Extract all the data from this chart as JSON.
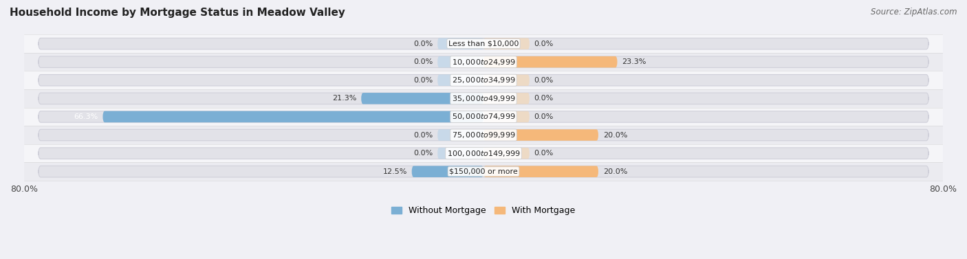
{
  "title": "Household Income by Mortgage Status in Meadow Valley",
  "source": "Source: ZipAtlas.com",
  "categories": [
    "Less than $10,000",
    "$10,000 to $24,999",
    "$25,000 to $34,999",
    "$35,000 to $49,999",
    "$50,000 to $74,999",
    "$75,000 to $99,999",
    "$100,000 to $149,999",
    "$150,000 or more"
  ],
  "without_mortgage": [
    0.0,
    0.0,
    0.0,
    21.3,
    66.3,
    0.0,
    0.0,
    12.5
  ],
  "with_mortgage": [
    0.0,
    23.3,
    0.0,
    0.0,
    0.0,
    20.0,
    0.0,
    20.0
  ],
  "color_without": "#7bafd4",
  "color_with": "#f5b87a",
  "color_without_light": "#b8d4ea",
  "color_with_light": "#f5d5af",
  "xlim_left": -80,
  "xlim_right": 80,
  "xtick_left_label": "80.0%",
  "xtick_right_label": "80.0%",
  "bg_row_odd": "#ebebf0",
  "bg_row_even": "#f5f5f8",
  "pill_color": "#e2e2e8",
  "pill_edge": "#d0d0da",
  "bar_height": 0.62,
  "row_sep": 0.08,
  "label_fontsize": 8.0,
  "title_fontsize": 11,
  "source_fontsize": 8.5,
  "tick_fontsize": 9
}
